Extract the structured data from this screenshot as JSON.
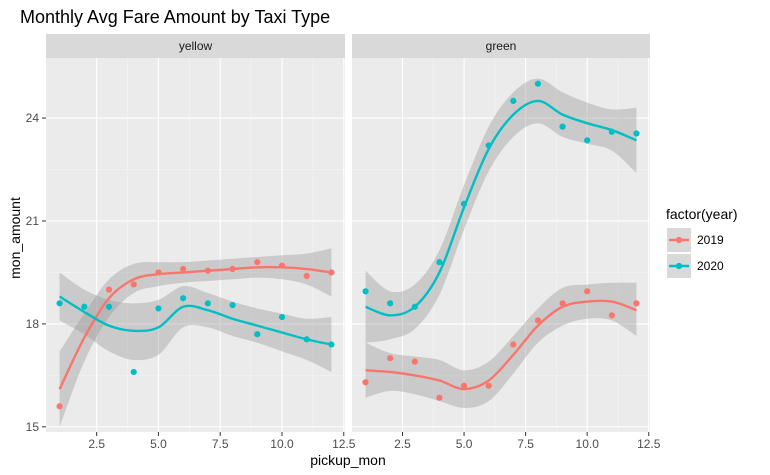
{
  "chart_data": {
    "type": "scatter",
    "title": "Monthly Avg Fare Amount by Taxi Type",
    "xlabel": "pickup_mon",
    "ylabel": "mon_amount",
    "xlim": [
      0.45,
      12.55
    ],
    "ylim": [
      14.85,
      25.75
    ],
    "x_ticks": [
      2.5,
      5.0,
      7.5,
      10.0,
      12.5
    ],
    "x_tick_labels": [
      "2.5",
      "5.0",
      "7.5",
      "10.0",
      "12.5"
    ],
    "y_ticks": [
      15,
      18,
      21,
      24
    ],
    "y_tick_labels": [
      "15",
      "18",
      "21",
      "24"
    ],
    "grid": true,
    "legend": {
      "title": "factor(year)",
      "position": "right",
      "entries": [
        "2019",
        "2020"
      ]
    },
    "series_colors": {
      "2019": "#F8766D",
      "2020": "#00BFC4"
    },
    "panels": [
      {
        "name": "yellow",
        "series": [
          {
            "name": "2019",
            "points": [
              [
                1,
                15.6
              ],
              [
                2,
                18.5
              ],
              [
                3,
                19.0
              ],
              [
                4,
                19.15
              ],
              [
                5,
                19.5
              ],
              [
                6,
                19.6
              ],
              [
                7,
                19.55
              ],
              [
                8,
                19.6
              ],
              [
                9,
                19.8
              ],
              [
                10,
                19.7
              ],
              [
                11,
                19.4
              ],
              [
                12,
                19.5
              ]
            ],
            "smooth": [
              [
                1,
                16.1
              ],
              [
                2,
                17.6
              ],
              [
                3,
                18.75
              ],
              [
                4,
                19.3
              ],
              [
                5,
                19.45
              ],
              [
                6,
                19.5
              ],
              [
                7,
                19.55
              ],
              [
                8,
                19.6
              ],
              [
                9,
                19.65
              ],
              [
                10,
                19.65
              ],
              [
                11,
                19.6
              ],
              [
                12,
                19.5
              ]
            ],
            "smooth_band": [
              [
                1,
                15.0,
                17.2
              ],
              [
                2,
                16.9,
                18.3
              ],
              [
                3,
                18.2,
                19.3
              ],
              [
                4,
                18.9,
                19.75
              ],
              [
                5,
                19.1,
                19.8
              ],
              [
                6,
                19.2,
                19.8
              ],
              [
                7,
                19.25,
                19.85
              ],
              [
                8,
                19.3,
                19.9
              ],
              [
                9,
                19.35,
                19.95
              ],
              [
                10,
                19.3,
                20.0
              ],
              [
                11,
                19.15,
                20.05
              ],
              [
                12,
                18.8,
                20.2
              ]
            ]
          },
          {
            "name": "2020",
            "points": [
              [
                1,
                18.6
              ],
              [
                2,
                18.5
              ],
              [
                3,
                18.5
              ],
              [
                4,
                16.6
              ],
              [
                5,
                18.45
              ],
              [
                6,
                18.75
              ],
              [
                7,
                18.6
              ],
              [
                8,
                18.55
              ],
              [
                9,
                17.7
              ],
              [
                10,
                18.2
              ],
              [
                11,
                17.55
              ],
              [
                12,
                17.4
              ]
            ],
            "smooth": [
              [
                1,
                18.8
              ],
              [
                2,
                18.35
              ],
              [
                3,
                17.95
              ],
              [
                4,
                17.8
              ],
              [
                5,
                17.9
              ],
              [
                6,
                18.5
              ],
              [
                7,
                18.4
              ],
              [
                8,
                18.15
              ],
              [
                9,
                17.95
              ],
              [
                10,
                17.75
              ],
              [
                11,
                17.55
              ],
              [
                12,
                17.4
              ]
            ],
            "smooth_band": [
              [
                1,
                18.1,
                19.5
              ],
              [
                2,
                17.7,
                19.0
              ],
              [
                3,
                17.2,
                18.7
              ],
              [
                4,
                16.95,
                18.6
              ],
              [
                5,
                17.1,
                18.7
              ],
              [
                6,
                17.9,
                19.1
              ],
              [
                7,
                17.9,
                18.9
              ],
              [
                8,
                17.65,
                18.65
              ],
              [
                9,
                17.45,
                18.45
              ],
              [
                10,
                17.2,
                18.3
              ],
              [
                11,
                16.95,
                18.15
              ],
              [
                12,
                16.6,
                18.2
              ]
            ]
          }
        ]
      },
      {
        "name": "green",
        "series": [
          {
            "name": "2019",
            "points": [
              [
                1,
                16.3
              ],
              [
                2,
                17.0
              ],
              [
                3,
                16.9
              ],
              [
                4,
                15.85
              ],
              [
                5,
                16.2
              ],
              [
                6,
                16.2
              ],
              [
                7,
                17.4
              ],
              [
                8,
                18.1
              ],
              [
                9,
                18.6
              ],
              [
                10,
                18.95
              ],
              [
                11,
                18.25
              ],
              [
                12,
                18.6
              ]
            ],
            "smooth": [
              [
                1,
                16.65
              ],
              [
                2,
                16.6
              ],
              [
                3,
                16.5
              ],
              [
                4,
                16.35
              ],
              [
                5,
                16.1
              ],
              [
                6,
                16.35
              ],
              [
                7,
                17.1
              ],
              [
                8,
                17.95
              ],
              [
                9,
                18.5
              ],
              [
                10,
                18.65
              ],
              [
                11,
                18.65
              ],
              [
                12,
                18.4
              ]
            ],
            "smooth_band": [
              [
                1,
                15.85,
                17.45
              ],
              [
                2,
                16.05,
                17.15
              ],
              [
                3,
                15.95,
                17.05
              ],
              [
                4,
                15.75,
                16.95
              ],
              [
                5,
                15.55,
                16.65
              ],
              [
                6,
                15.75,
                16.9
              ],
              [
                7,
                16.55,
                17.65
              ],
              [
                8,
                17.45,
                18.45
              ],
              [
                9,
                17.95,
                19.05
              ],
              [
                10,
                18.15,
                19.15
              ],
              [
                11,
                18.1,
                19.2
              ],
              [
                12,
                17.65,
                19.2
              ]
            ]
          },
          {
            "name": "2020",
            "points": [
              [
                1,
                18.95
              ],
              [
                2,
                18.6
              ],
              [
                3,
                18.5
              ],
              [
                4,
                19.8
              ],
              [
                5,
                21.5
              ],
              [
                6,
                23.2
              ],
              [
                7,
                24.5
              ],
              [
                8,
                25.0
              ],
              [
                9,
                23.75
              ],
              [
                10,
                23.35
              ],
              [
                11,
                23.6
              ],
              [
                12,
                23.55
              ]
            ],
            "smooth": [
              [
                1,
                18.5
              ],
              [
                2,
                18.25
              ],
              [
                3,
                18.5
              ],
              [
                4,
                19.5
              ],
              [
                5,
                21.4
              ],
              [
                6,
                23.1
              ],
              [
                7,
                24.1
              ],
              [
                8,
                24.5
              ],
              [
                9,
                24.1
              ],
              [
                10,
                23.85
              ],
              [
                11,
                23.65
              ],
              [
                12,
                23.35
              ]
            ],
            "smooth_band": [
              [
                1,
                17.45,
                19.55
              ],
              [
                2,
                17.55,
                18.95
              ],
              [
                3,
                17.85,
                19.15
              ],
              [
                4,
                18.85,
                20.15
              ],
              [
                5,
                20.75,
                22.05
              ],
              [
                6,
                22.45,
                23.75
              ],
              [
                7,
                23.45,
                24.75
              ],
              [
                8,
                23.85,
                25.15
              ],
              [
                9,
                23.45,
                24.75
              ],
              [
                10,
                23.25,
                24.45
              ],
              [
                11,
                23.05,
                24.25
              ],
              [
                12,
                22.4,
                24.3
              ]
            ]
          }
        ]
      }
    ]
  }
}
